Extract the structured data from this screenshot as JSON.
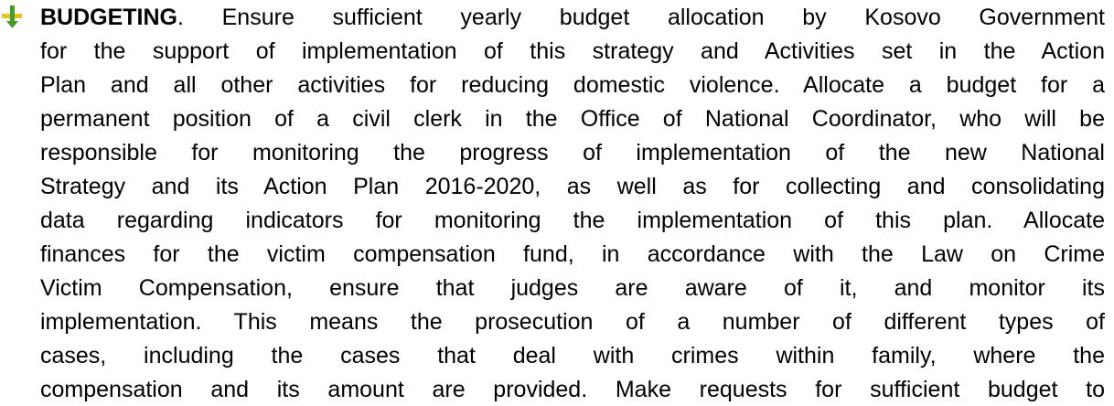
{
  "bullet": {
    "heading": "BUDGETING",
    "lines": [
      ". Ensure sufficient yearly budget allocation by Kosovo Government",
      "for the support of implementation of this strategy and Activities set in the Action",
      "Plan and all other activities for reducing domestic violence. Allocate a budget for a",
      "permanent position of a civil clerk in the Office of National Coordinator, who will be",
      "responsible for monitoring the progress of implementation of the new National",
      "Strategy and its Action Plan 2016-2020, as well as for collecting and consolidating",
      "data regarding indicators for monitoring the implementation of this plan. Allocate",
      "finances for the victim compensation fund, in accordance with the Law on Crime",
      "Victim Compensation, ensure that judges are aware of it, and monitor its",
      "implementation. This means the prosecution of a number of different types of",
      "cases, including the cases that deal with crimes within family, where the",
      "compensation and its amount are provided. Make requests for sufficient budget to"
    ]
  }
}
